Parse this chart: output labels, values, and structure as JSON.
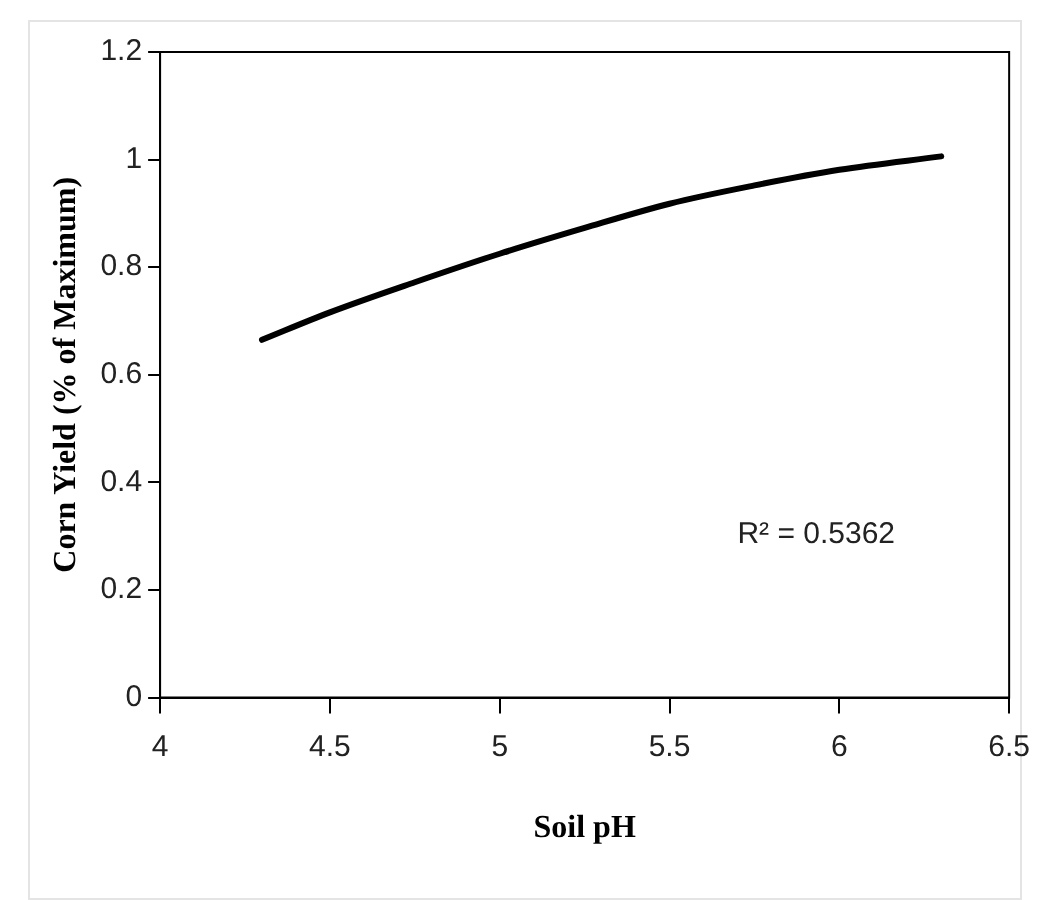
{
  "chart_data": {
    "type": "line",
    "xlabel": "Soil pH",
    "ylabel": "Corn Yield (% of Maximum)",
    "x": [
      4.3,
      4.5,
      4.75,
      5,
      5.25,
      5.5,
      5.75,
      6,
      6.3
    ],
    "series": [
      {
        "color": "#000000",
        "values": [
          0.665,
          0.716,
          0.772,
          0.825,
          0.873,
          0.918,
          0.952,
          0.981,
          1.006
        ]
      }
    ],
    "xlim": [
      4,
      6.5
    ],
    "xticks": [
      4,
      4.5,
      5,
      5.5,
      6,
      6.5
    ],
    "ylim": [
      0,
      1.2
    ],
    "yticks": [
      0,
      0.2,
      0.4,
      0.6,
      0.8,
      1,
      1.2
    ],
    "grid": false,
    "legend": false,
    "marker": "none",
    "line_style": "solid",
    "annotations": [
      "R² = 0.5362"
    ]
  }
}
